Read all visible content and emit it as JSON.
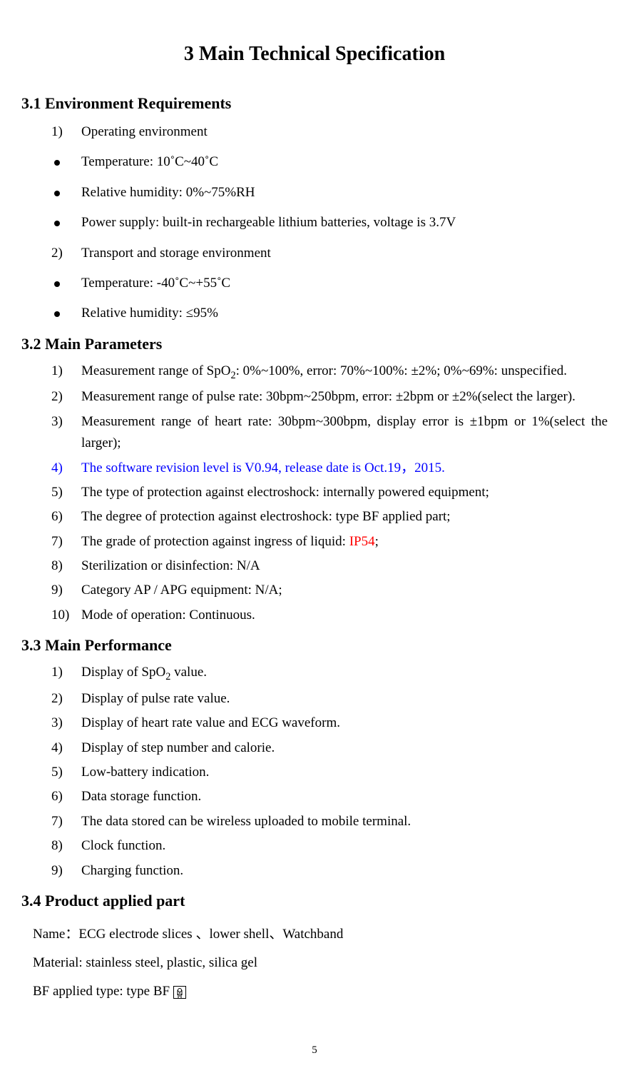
{
  "colors": {
    "text": "#000000",
    "background": "#ffffff",
    "highlight_blue": "#0000ff",
    "highlight_red": "#ff0000"
  },
  "fonts": {
    "body_family": "Times New Roman",
    "title_pt": 21,
    "subhead_pt": 16,
    "body_pt": 14
  },
  "page_number": "5",
  "title": "3 Main Technical Specification",
  "sec31": {
    "heading": "3.1 Environment Requirements",
    "items": [
      {
        "marker": "1)",
        "kind": "num",
        "text": "Operating environment"
      },
      {
        "marker": "",
        "kind": "bullet",
        "text": "Temperature: 10˚C~40˚C"
      },
      {
        "marker": "",
        "kind": "bullet",
        "text": "Relative humidity: 0%~75%RH"
      },
      {
        "marker": "",
        "kind": "bullet",
        "text": "Power supply: built-in rechargeable lithium batteries, voltage is 3.7V"
      },
      {
        "marker": "2)",
        "kind": "num",
        "text": "Transport and storage environment"
      },
      {
        "marker": "",
        "kind": "bullet",
        "text": "Temperature: -40˚C~+55˚C"
      },
      {
        "marker": "",
        "kind": "bullet",
        "text": "Relative humidity: ≤95%"
      }
    ]
  },
  "sec32": {
    "heading": "3.2 Main Parameters",
    "items": [
      {
        "marker": "1)",
        "text_pre": "Measurement range of SpO",
        "sub": "2",
        "text_post": ": 0%~100%, error: 70%~100%: ±2%; 0%~69%: unspecified."
      },
      {
        "marker": "2)",
        "text_pre": "Measurement range of pulse rate: 30bpm~250bpm, error: ±2bpm or ±2%(select the larger).",
        "sub": "",
        "text_post": ""
      },
      {
        "marker": "3)",
        "text_pre": "Measurement range of heart rate: 30bpm~300bpm, display error is ±1bpm or 1%(select the larger);",
        "sub": "",
        "text_post": ""
      },
      {
        "marker": "4)",
        "blue": true,
        "text_pre": "The software revision level is V0.94, release date is Oct.19，2015.",
        "sub": "",
        "text_post": ""
      },
      {
        "marker": "5)",
        "text_pre": "The type of protection against electroshock: internally powered equipment;",
        "sub": "",
        "text_post": ""
      },
      {
        "marker": "6)",
        "text_pre": "The degree of protection against electroshock: type BF applied part;",
        "sub": "",
        "text_post": ""
      },
      {
        "marker": "7)",
        "text_pre": "The grade of protection against ingress of liquid: ",
        "sub": "",
        "text_post": ";",
        "red_mid": "IP54"
      },
      {
        "marker": "8)",
        "text_pre": "Sterilization or disinfection:   N/A",
        "sub": "",
        "text_post": ""
      },
      {
        "marker": "9)",
        "text_pre": "Category AP / APG equipment: N/A;",
        "sub": "",
        "text_post": ""
      },
      {
        "marker": "10)",
        "text_pre": "Mode of operation: Continuous.",
        "sub": "",
        "text_post": ""
      }
    ]
  },
  "sec33": {
    "heading": "3.3 Main Performance",
    "items": [
      {
        "marker": "1)",
        "text_pre": "Display of SpO",
        "sub": "2",
        "text_post": " value."
      },
      {
        "marker": "2)",
        "text_pre": "Display of pulse rate value.",
        "sub": "",
        "text_post": ""
      },
      {
        "marker": "3)",
        "text_pre": "Display of heart rate value and ECG waveform.",
        "sub": "",
        "text_post": ""
      },
      {
        "marker": "4)",
        "text_pre": "Display of step number and calorie.",
        "sub": "",
        "text_post": ""
      },
      {
        "marker": "5)",
        "text_pre": "Low-battery indication.",
        "sub": "",
        "text_post": ""
      },
      {
        "marker": "6)",
        "text_pre": "Data storage function.",
        "sub": "",
        "text_post": ""
      },
      {
        "marker": "7)",
        "text_pre": "The data stored can be wireless uploaded to mobile terminal.",
        "sub": "",
        "text_post": ""
      },
      {
        "marker": "8)",
        "text_pre": "Clock function.",
        "sub": "",
        "text_post": ""
      },
      {
        "marker": "9)",
        "text_pre": "Charging function.",
        "sub": "",
        "text_post": ""
      }
    ]
  },
  "sec34": {
    "heading": "3.4 Product applied part",
    "name_line_label": "Name：",
    "name_line_value": "ECG electrode slices 、lower shell、Watchband",
    "material_line": "Material: stainless steel, plastic, silica gel",
    "bf_line": "BF applied type: type BF "
  }
}
